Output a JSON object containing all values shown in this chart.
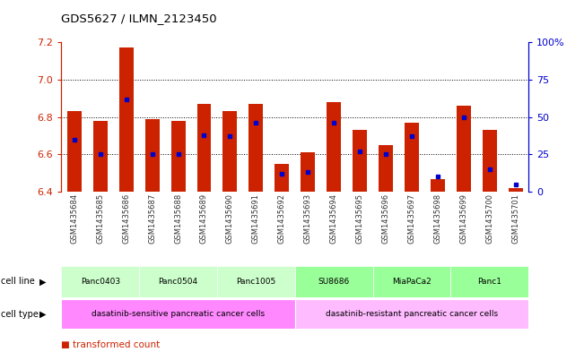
{
  "title": "GDS5627 / ILMN_2123450",
  "samples": [
    "GSM1435684",
    "GSM1435685",
    "GSM1435686",
    "GSM1435687",
    "GSM1435688",
    "GSM1435689",
    "GSM1435690",
    "GSM1435691",
    "GSM1435692",
    "GSM1435693",
    "GSM1435694",
    "GSM1435695",
    "GSM1435696",
    "GSM1435697",
    "GSM1435698",
    "GSM1435699",
    "GSM1435700",
    "GSM1435701"
  ],
  "transformed_count": [
    6.83,
    6.78,
    7.17,
    6.79,
    6.78,
    6.87,
    6.83,
    6.87,
    6.55,
    6.61,
    6.88,
    6.73,
    6.65,
    6.77,
    6.47,
    6.86,
    6.73,
    6.42
  ],
  "percentile_rank": [
    35,
    25,
    62,
    25,
    25,
    38,
    37,
    46,
    12,
    13,
    46,
    27,
    25,
    37,
    10,
    50,
    15,
    5
  ],
  "ylim": [
    6.4,
    7.2
  ],
  "yticks": [
    6.4,
    6.6,
    6.8,
    7.0,
    7.2
  ],
  "right_yticks": [
    0,
    25,
    50,
    75,
    100
  ],
  "right_ylabels": [
    "0",
    "25",
    "50",
    "75",
    "100%"
  ],
  "bar_color": "#cc2200",
  "dot_color": "#0000cc",
  "bar_width": 0.55,
  "cell_lines": [
    {
      "label": "Panc0403",
      "start": 0,
      "end": 2,
      "color": "#ccffcc"
    },
    {
      "label": "Panc0504",
      "start": 3,
      "end": 5,
      "color": "#ccffcc"
    },
    {
      "label": "Panc1005",
      "start": 6,
      "end": 8,
      "color": "#ccffcc"
    },
    {
      "label": "SU8686",
      "start": 9,
      "end": 11,
      "color": "#99ff99"
    },
    {
      "label": "MiaPaCa2",
      "start": 12,
      "end": 14,
      "color": "#99ff99"
    },
    {
      "label": "Panc1",
      "start": 15,
      "end": 17,
      "color": "#99ff99"
    }
  ],
  "cell_types": [
    {
      "label": "dasatinib-sensitive pancreatic cancer cells",
      "start": 0,
      "end": 8,
      "color": "#ff88ff"
    },
    {
      "label": "dasatinib-resistant pancreatic cancer cells",
      "start": 9,
      "end": 17,
      "color": "#ffbbff"
    }
  ],
  "left_axis_color": "#cc2200",
  "right_axis_color": "#0000cc"
}
